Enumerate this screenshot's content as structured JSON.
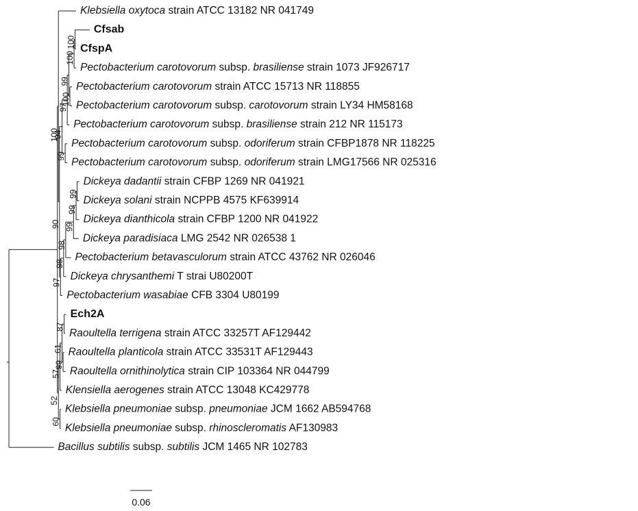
{
  "taxa": [
    {
      "id": "k_oxytoca",
      "parts": [
        {
          "t": "Klebsiella oxytoca",
          "i": true
        },
        {
          "t": " strain ATCC 13182 NR 041749",
          "i": false
        }
      ]
    },
    {
      "id": "cfsab",
      "bold": true,
      "parts": [
        {
          "t": "Cfsab",
          "i": false
        }
      ]
    },
    {
      "id": "cfspa",
      "bold": true,
      "parts": [
        {
          "t": "CfspA",
          "i": false
        }
      ]
    },
    {
      "id": "pcb_1073",
      "parts": [
        {
          "t": "Pectobacterium carotovorum",
          "i": true
        },
        {
          "t": " subsp.  ",
          "i": false
        },
        {
          "t": "brasiliense",
          "i": true
        },
        {
          "t": " strain 1073 JF926717",
          "i": false
        }
      ]
    },
    {
      "id": "pc_15713",
      "parts": [
        {
          "t": "Pectobacterium carotovorum",
          "i": true
        },
        {
          "t": " strain ATCC 15713 NR 118855",
          "i": false
        }
      ]
    },
    {
      "id": "pcc_ly34",
      "parts": [
        {
          "t": "Pectobacterium carotovorum",
          "i": true
        },
        {
          "t": " subsp.  ",
          "i": false
        },
        {
          "t": "carotovorum",
          "i": true
        },
        {
          "t": " strain LY34 HM58168",
          "i": false
        }
      ]
    },
    {
      "id": "pcb_212",
      "parts": [
        {
          "t": "Pectobacterium carotovorum",
          "i": true
        },
        {
          "t": " subsp.  ",
          "i": false
        },
        {
          "t": "brasiliense",
          "i": true
        },
        {
          "t": " strain 212 NR 115173",
          "i": false
        }
      ]
    },
    {
      "id": "pco_cfbp",
      "parts": [
        {
          "t": "Pectobacterium carotovorum",
          "i": true
        },
        {
          "t": " subsp.  ",
          "i": false
        },
        {
          "t": "odoriferum",
          "i": true
        },
        {
          "t": " strain CFBP1878 NR 118225",
          "i": false
        }
      ]
    },
    {
      "id": "pco_lmg",
      "parts": [
        {
          "t": "Pectobacterium carotovorum",
          "i": true
        },
        {
          "t": " subsp.  ",
          "i": false
        },
        {
          "t": "odoriferum",
          "i": true
        },
        {
          "t": " strain LMG17566 NR 025316",
          "i": false
        }
      ]
    },
    {
      "id": "d_dadantii",
      "parts": [
        {
          "t": "Dickeya dadantii",
          "i": true
        },
        {
          "t": " strain CFBP 1269 NR 041921",
          "i": false
        }
      ]
    },
    {
      "id": "d_solani",
      "parts": [
        {
          "t": "Dickeya solani",
          "i": true
        },
        {
          "t": " strain NCPPB 4575 KF639914",
          "i": false
        }
      ]
    },
    {
      "id": "d_dianthicola",
      "parts": [
        {
          "t": "Dickeya dianthicola",
          "i": true
        },
        {
          "t": " strain CFBP 1200 NR 041922",
          "i": false
        }
      ]
    },
    {
      "id": "d_paradisiaca",
      "parts": [
        {
          "t": "Dickeya paradisiaca",
          "i": true
        },
        {
          "t": " LMG 2542 NR 026538 1",
          "i": false
        }
      ]
    },
    {
      "id": "p_betavasc",
      "parts": [
        {
          "t": "Pectobacterium  betavasculorum",
          "i": true
        },
        {
          "t": "  strain  ATCC  43762  NR  026046",
          "i": false
        }
      ]
    },
    {
      "id": "d_chrysanthemi",
      "parts": [
        {
          "t": "Dickeya chrysanthemi",
          "i": true
        },
        {
          "t": " T strai U80200T",
          "i": false
        }
      ]
    },
    {
      "id": "p_wasabiae",
      "parts": [
        {
          "t": "Pectobacterium wasabiae",
          "i": true
        },
        {
          "t": " CFB 3304 U80199",
          "i": false
        }
      ]
    },
    {
      "id": "ech2a",
      "bold": true,
      "parts": [
        {
          "t": "Ech2A",
          "i": false
        }
      ]
    },
    {
      "id": "r_terrigena",
      "parts": [
        {
          "t": "Raoultella terrigena",
          "i": true
        },
        {
          "t": " strain ATCC 33257T AF129442",
          "i": false
        }
      ]
    },
    {
      "id": "r_planticola",
      "parts": [
        {
          "t": "Raoultella planticola",
          "i": true
        },
        {
          "t": " strain ATCC 33531T AF129443",
          "i": false
        }
      ]
    },
    {
      "id": "r_ornithino",
      "parts": [
        {
          "t": "Raoultella ornithinolytica",
          "i": true
        },
        {
          "t": " strain CIP 103364 NR 044799",
          "i": false
        }
      ]
    },
    {
      "id": "k_aerogenes",
      "parts": [
        {
          "t": "Klensiella aerogenes",
          "i": true
        },
        {
          "t": " strain ATCC 13048 KC429778",
          "i": false
        }
      ]
    },
    {
      "id": "kp_pneumoniae",
      "parts": [
        {
          "t": "Klebsiella pneumoniae",
          "i": true
        },
        {
          "t": " subsp.  ",
          "i": false
        },
        {
          "t": "pneumoniae",
          "i": true
        },
        {
          "t": " JCM 1662 AB594768",
          "i": false
        }
      ]
    },
    {
      "id": "kp_rhino",
      "parts": [
        {
          "t": "Klebsiella pneumoniae",
          "i": true
        },
        {
          "t": " subsp.  ",
          "i": false
        },
        {
          "t": "rhinoscleromatis",
          "i": true
        },
        {
          "t": " AF130983",
          "i": false
        }
      ]
    },
    {
      "id": "b_subtilis",
      "parts": [
        {
          "t": "Bacillus subtilis",
          "i": true
        },
        {
          "t": " subsp. ",
          "i": false
        },
        {
          "t": "subtilis",
          "i": true
        },
        {
          "t": " JCM 1465 NR 102783",
          "i": false
        }
      ]
    }
  ],
  "tree": {
    "c": [
      {
        "c": [
          {
            "leaf": "k_oxytoca",
            "d": 0.034
          },
          {
            "c": [
              {
                "c": [
                  {
                    "c": [
                      {
                        "c": [
                          {
                            "c": [
                              {
                                "c": [
                                  {
                                    "leaf": "cfsab",
                                    "d": 0.028
                                  },
                                  {
                                    "leaf": "cfspa",
                                    "d": 0.002
                                  }
                                ],
                                "support": "100",
                                "d": 0.002
                              },
                              {
                                "leaf": "pcb_1073",
                                "d": 0.004
                              }
                            ],
                            "support": "100",
                            "d": 0.01
                          },
                          {
                            "c": [
                              {
                                "leaf": "pc_15713",
                                "d": 0.004
                              },
                              {
                                "leaf": "pcc_ly34",
                                "d": 0.004
                              }
                            ],
                            "support": "100",
                            "d": 0.002
                          }
                        ],
                        "support": "99",
                        "d": 0.003
                      },
                      {
                        "leaf": "pcb_212",
                        "d": 0.004
                      }
                    ],
                    "support": "97",
                    "d": 0.01
                  },
                  {
                    "c": [
                      {
                        "leaf": "pco_cfbp",
                        "d": 0.004
                      },
                      {
                        "leaf": "pco_lmg",
                        "d": 0.004
                      }
                    ],
                    "support": "99",
                    "d": 0.006
                  }
                ],
                "support": "94",
                "d": 0.005
              },
              {
                "c": [
                  {
                    "c": [
                      {
                        "c": [
                          {
                            "c": [
                              {
                                "c": [
                                  {
                                    "c": [
                                      {
                                        "leaf": "d_dadantii",
                                        "d": 0.004
                                      },
                                      {
                                        "leaf": "d_solani",
                                        "d": 0.004
                                      }
                                    ],
                                    "support": "99",
                                    "d": 0.002
                                  },
                                  {
                                    "leaf": "d_dianthicola",
                                    "d": 0.006
                                  }
                                ],
                                "support": "99",
                                "d": 0.005
                              },
                              {
                                "leaf": "d_paradisiaca",
                                "d": 0.01
                              }
                            ],
                            "support": "99",
                            "d": 0.015
                          },
                          {
                            "leaf": "p_betavasc",
                            "d": 0.01
                          }
                        ],
                        "support": "98",
                        "d": 0.004
                      },
                      {
                        "leaf": "d_chrysanthemi",
                        "d": 0.005
                      }
                    ],
                    "support": "98",
                    "d": 0.006
                  },
                  {
                    "leaf": "p_wasabiae",
                    "d": 0.004
                  }
                ],
                "support": "97",
                "d": 0.002
              }
            ],
            "support": "90",
            "d": 0.002
          }
        ],
        "support": "100",
        "d": 0.002
      },
      {
        "c": [
          {
            "c": [
              {
                "c": [
                  {
                    "c": [
                      {
                        "leaf": "ech2a",
                        "d": 0.004
                      },
                      {
                        "leaf": "r_terrigena",
                        "d": 0.002
                      }
                    ],
                    "support": "87",
                    "d": 0.004
                  },
                  {
                    "c": [
                      {
                        "leaf": "r_planticola",
                        "d": 0.002
                      },
                      {
                        "leaf": "r_ornithino",
                        "d": 0.005
                      }
                    ],
                    "support": "99",
                    "d": 0.002
                  }
                ],
                "support": "61",
                "d": 0.004
              },
              {
                "leaf": "k_aerogenes",
                "d": 0.003
              }
            ],
            "support": "57",
            "d": 0.003
          },
          {
            "c": [
              {
                "leaf": "kp_pneumoniae",
                "d": 0.002
              },
              {
                "leaf": "kp_rhino",
                "d": 0.002
              }
            ],
            "support": "60",
            "d": 0.003
          }
        ],
        "support": "52",
        "d": 0.002
      }
    ],
    "support": "",
    "d": 0.093,
    "outgroup": {
      "leaf": "b_subtilis",
      "d": 0.086
    },
    "root_stub": 0.004
  },
  "scale_bar": {
    "length": 0.06,
    "label": "0.06"
  }
}
